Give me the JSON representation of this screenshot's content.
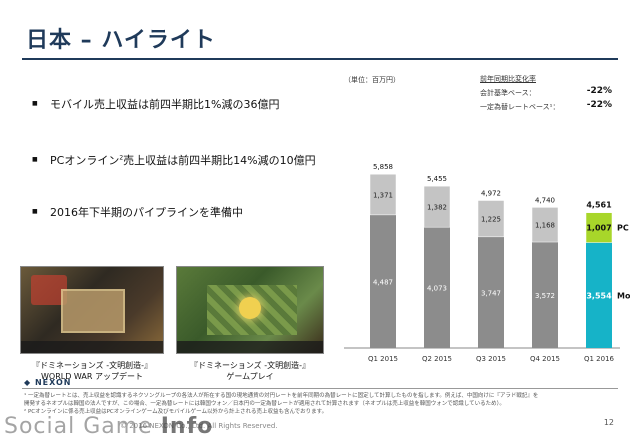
{
  "title": "日本 – ハイライト",
  "bullets": [
    {
      "text": "モバイル売上収益は前四半期比1%減の36億円",
      "sup": ""
    },
    {
      "pre": "PCオンライン",
      "sup": "2",
      "post": "売上収益は前四半期比14%減の10億円"
    },
    {
      "text": "2016年下半期のパイプラインを準備中",
      "sup": ""
    }
  ],
  "images": [
    {
      "caption_line1": "『ドミネーションズ -文明創造-』",
      "caption_line2": "WORLD WAR アップデート"
    },
    {
      "caption_line1": "『ドミネーションズ -文明創造-』",
      "caption_line2": "ゲームプレイ"
    }
  ],
  "unit_label": "（単位：百万円）",
  "yoy": {
    "heading": "前年同期比変化率",
    "rows": [
      {
        "label": "会計基準ベース：",
        "value": "-22%"
      },
      {
        "label": "一定為替レートベース¹：",
        "value": "-22%"
      }
    ]
  },
  "chart_data": {
    "type": "bar",
    "stacked": true,
    "categories": [
      "Q1 2015",
      "Q2 2015",
      "Q3 2015",
      "Q4 2015",
      "Q1 2016"
    ],
    "series": [
      {
        "name": "Mobile",
        "values": [
          4487,
          4073,
          3747,
          3572,
          3554
        ]
      },
      {
        "name": "PC",
        "values": [
          1371,
          1382,
          1225,
          1168,
          1007
        ]
      }
    ],
    "totals": [
      "5,858",
      "5,455",
      "4,972",
      "4,740",
      "4,561"
    ],
    "value_labels_mobile": [
      "4,487",
      "4,073",
      "3,747",
      "3,572",
      "3,554"
    ],
    "value_labels_pc": [
      "1,371",
      "1,382",
      "1,225",
      "1,168",
      "1,007"
    ],
    "legend": {
      "pc": "PC",
      "pc_sup": "2",
      "mobile": "Mobile"
    },
    "colors": {
      "mobile_past": "#8c8c8c",
      "pc_past": "#c4c4c4",
      "mobile_current": "#16b3c8",
      "pc_current": "#a8d62a"
    },
    "ylim": [
      0,
      6000
    ]
  },
  "footnote_line1": "¹ 一定為替レートとは、売上収益を認識するネクソングループの各法人が所在する国の現地通貨の対円レートを前年同期の為替レートに固定して計算したものを指します。例えば、中国向けに『アラド戦記』を",
  "footnote_line2": "   開発するネオプルは韓国の法人ですが、この場合、一定為替レートには韓国ウォン／日本円の一定為替レートが適用されて計算されます（ネオプルは売上収益を韓国ウォンで認識しているため）。",
  "footnote_line3": "² PCオンラインに係る売上収益はPCオンラインゲーム及びモバイルゲーム以外から計上される売上収益も含んでおります。",
  "logo": "◆ NEXON",
  "copyright": "© 2016 NEXON Co., Ltd. All Rights Reserved.",
  "page": "12",
  "watermark_a": "Social Game ",
  "watermark_b": "Info"
}
